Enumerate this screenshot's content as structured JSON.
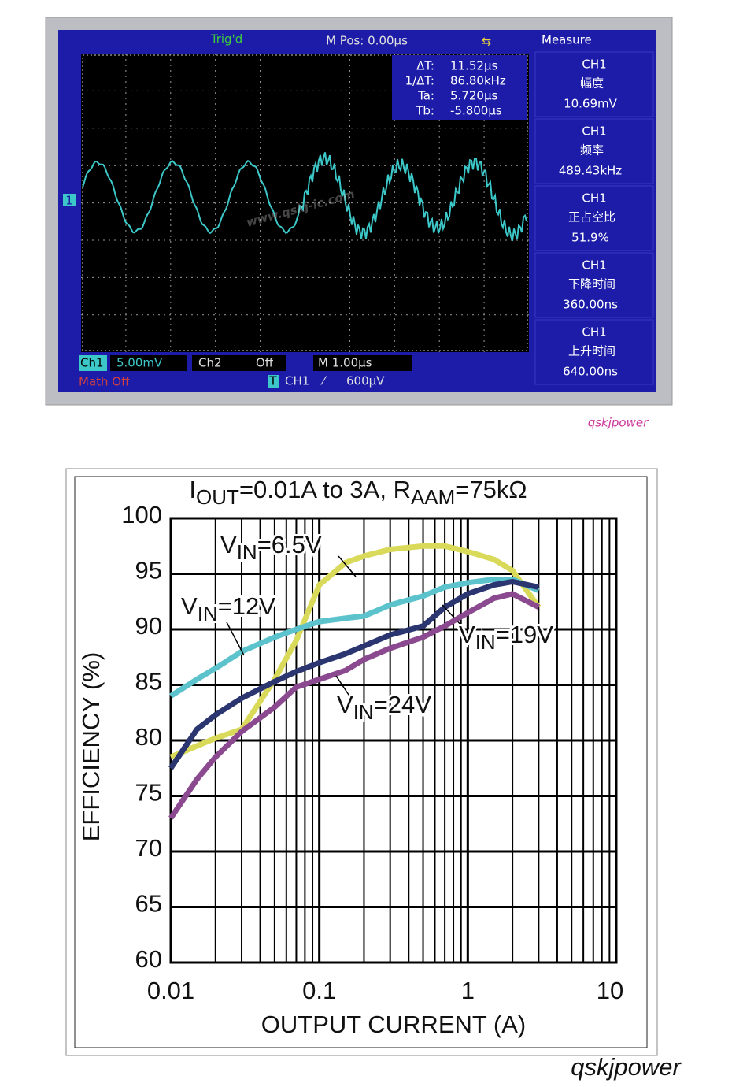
{
  "scope": {
    "trig": "Trig'd",
    "mpos": "M Pos: 0.00µs",
    "measure": "Measure",
    "marker": "1",
    "cursor": [
      [
        "ΔT:",
        "11.52µs"
      ],
      [
        "1/ΔT:",
        "86.80kHz"
      ],
      [
        "Ta:",
        "5.720µs"
      ],
      [
        "Tb:",
        "-5.800µs"
      ]
    ],
    "panels": [
      {
        "ch": "CH1",
        "label": "幅度",
        "value": "10.69mV"
      },
      {
        "ch": "CH1",
        "label": "频率",
        "value": "489.43kHz"
      },
      {
        "ch": "CH1",
        "label": "正占空比",
        "value": "51.9%"
      },
      {
        "ch": "CH1",
        "label": "下降时间",
        "value": "360.00ns"
      },
      {
        "ch": "CH1",
        "label": "上升时间",
        "value": "640.00ns"
      }
    ],
    "ch1": "Ch1",
    "ch1_scale": "5.00mV",
    "ch2": "Ch2",
    "ch2_state": "Off",
    "timebase": "M 1.00µs",
    "math": "Math Off",
    "trig_icon": "T",
    "trig_src": "CH1",
    "trig_slope": "⁄",
    "trig_level": "600µV",
    "watermark": "www.qskj-ic.com",
    "credit": "qskjpower"
  },
  "chart_data": {
    "type": "line",
    "title": [
      "I",
      "OUT",
      "=0.01A to 3A, R",
      "AAM",
      "=75kΩ"
    ],
    "xlabel": "OUTPUT CURRENT (A)",
    "ylabel": "EFFICIENCY (%)",
    "xscale": "log",
    "grid": true,
    "xlim": [
      0.01,
      10
    ],
    "xticks": [
      0.01,
      0.1,
      1,
      10
    ],
    "xminorticks": [
      0.02,
      0.03,
      0.04,
      0.05,
      0.06,
      0.07,
      0.08,
      0.09,
      0.2,
      0.3,
      0.4,
      0.5,
      0.6,
      0.7,
      0.8,
      0.9,
      2,
      3,
      4,
      5,
      6,
      7,
      8,
      9
    ],
    "ylim": [
      60,
      100
    ],
    "yticks": [
      60,
      65,
      70,
      75,
      80,
      85,
      90,
      95,
      100
    ],
    "x": [
      0.01,
      0.015,
      0.02,
      0.03,
      0.05,
      0.07,
      0.1,
      0.15,
      0.2,
      0.3,
      0.5,
      0.7,
      1,
      1.5,
      2,
      3
    ],
    "series": [
      {
        "name": [
          "V",
          "IN",
          "=6.5V"
        ],
        "color": "#d9d95a",
        "values": [
          78.5,
          79.5,
          80.2,
          81,
          85.5,
          89,
          94,
          96,
          96.6,
          97.2,
          97.5,
          97.5,
          97,
          96.3,
          95.3,
          92
        ]
      },
      {
        "name": [
          "V",
          "IN",
          "=12V"
        ],
        "color": "#5cc3cc",
        "values": [
          84,
          85.5,
          86.5,
          88,
          89.3,
          90,
          90.7,
          91,
          91.2,
          92.2,
          93,
          93.8,
          94.2,
          94.5,
          94.5,
          93.5
        ]
      },
      {
        "name": [
          "V",
          "IN",
          "=19V"
        ],
        "color": "#2b3570",
        "values": [
          77.5,
          81,
          82.3,
          83.8,
          85.3,
          86.2,
          87,
          87.8,
          88.5,
          89.5,
          90.3,
          92,
          93.2,
          94,
          94.3,
          93.8
        ]
      },
      {
        "name": [
          "V",
          "IN",
          "=24V"
        ],
        "color": "#8b4a90",
        "values": [
          73,
          76.5,
          78.5,
          80.8,
          83,
          84.8,
          85.5,
          86.3,
          87.3,
          88.3,
          89.3,
          90.3,
          91.5,
          92.8,
          93.2,
          92
        ]
      }
    ]
  }
}
